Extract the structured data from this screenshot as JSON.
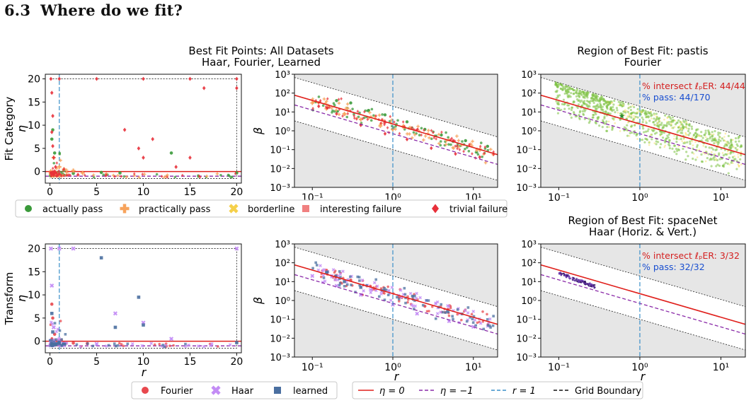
{
  "section": {
    "number": "6.3",
    "title": "Where do we fit?"
  },
  "titles": {
    "middle_top": [
      "Best Fit Points: All Datasets",
      "Haar, Fourier, Learned"
    ],
    "right_top": [
      "Region of Best Fit: pastis",
      "Fourier"
    ],
    "right_bottom": [
      "Region of Best Fit: spaceNet",
      "Haar (Horiz. & Vert.)"
    ]
  },
  "row_labels": {
    "top": "Fit Category",
    "bottom": "Transform"
  },
  "axes": {
    "left_xlabel": "r",
    "left_ylabel": "η",
    "loglog_xlabel": "r",
    "loglog_ylabel": "β",
    "left_xticks": [
      "0",
      "5",
      "10",
      "15",
      "20"
    ],
    "left_yticks": [
      "0",
      "5",
      "10",
      "15",
      "20"
    ],
    "log_xticks": [
      "10⁻¹",
      "10⁰",
      "10¹"
    ],
    "log_yticks": [
      "10⁻³",
      "10⁻²",
      "10⁻¹",
      "10⁰",
      "10¹",
      "10²",
      "10³"
    ]
  },
  "annotations": {
    "pastis": {
      "intersect": "% intersect ℓₚER: 44/44",
      "pass": "% pass: 44/170"
    },
    "spacenet": {
      "intersect": "% intersect ℓₚER: 3/32",
      "pass": "% pass: 32/32"
    }
  },
  "legends": {
    "fit_category": [
      {
        "label": "actually pass",
        "color": "#3a9a3a",
        "marker": "circle"
      },
      {
        "label": "practically pass",
        "color": "#f7a35c",
        "marker": "plus"
      },
      {
        "label": "borderline",
        "color": "#f5d04a",
        "marker": "x"
      },
      {
        "label": "interesting failure",
        "color": "#f08080",
        "marker": "square"
      },
      {
        "label": "trivial failure",
        "color": "#e8303a",
        "marker": "diamond"
      }
    ],
    "transform": [
      {
        "label": "Fourier",
        "color": "#e8484e",
        "marker": "circle"
      },
      {
        "label": "Haar",
        "color": "#c38cf5",
        "marker": "x"
      },
      {
        "label": "learned",
        "color": "#4a6fa0",
        "marker": "square"
      }
    ],
    "lines": [
      {
        "label": "η = 0",
        "color": "#e0201c",
        "style": "solid"
      },
      {
        "label": "η = −1",
        "color": "#8a2aa8",
        "style": "dashed"
      },
      {
        "label": "r = 1",
        "color": "#3a8fc8",
        "style": "dashed"
      },
      {
        "label": "Grid Boundary",
        "color": "#111111",
        "style": "dashed"
      }
    ]
  },
  "chart_data": [
    {
      "type": "scatter",
      "id": "fit-category-eta-vs-r",
      "xlabel": "r",
      "ylabel": "η",
      "xlim": [
        -0.5,
        20.5
      ],
      "ylim": [
        -2.5,
        21
      ],
      "series": [
        {
          "name": "actually pass",
          "points": [
            [
              0.3,
              9
            ],
            [
              0.2,
              7
            ],
            [
              0.5,
              4
            ],
            [
              1.5,
              0.2
            ],
            [
              2.5,
              -0.4
            ],
            [
              5.5,
              -0.2
            ],
            [
              7.5,
              -0.3
            ],
            [
              13,
              4
            ],
            [
              20,
              -0.3
            ]
          ]
        },
        {
          "name": "practically pass",
          "points": [
            [
              0.4,
              3
            ],
            [
              1.0,
              1
            ],
            [
              1.5,
              0.5
            ],
            [
              2.5,
              0.2
            ],
            [
              3.5,
              -0.3
            ]
          ]
        },
        {
          "name": "trivial failure",
          "points": [
            [
              0.1,
              20
            ],
            [
              1,
              20
            ],
            [
              5,
              20
            ],
            [
              10,
              20
            ],
            [
              15,
              20
            ],
            [
              20,
              20
            ],
            [
              0.2,
              17
            ],
            [
              0.3,
              12
            ],
            [
              0.2,
              8.5
            ],
            [
              0.3,
              5.5
            ],
            [
              0.4,
              3
            ],
            [
              0.6,
              1
            ],
            [
              1,
              -0.5
            ],
            [
              3,
              -0.7
            ],
            [
              6,
              -0.8
            ],
            [
              8,
              9
            ],
            [
              9.5,
              5
            ],
            [
              10,
              3
            ],
            [
              11,
              7
            ],
            [
              13.5,
              1
            ],
            [
              15,
              3
            ],
            [
              16.5,
              18
            ],
            [
              20,
              18
            ]
          ]
        }
      ]
    },
    {
      "type": "scatter",
      "id": "fit-category-beta-vs-r",
      "xscale": "log",
      "yscale": "log",
      "xlabel": "r",
      "ylabel": "β",
      "xlim": [
        0.06,
        20
      ],
      "ylim": [
        0.001,
        1000
      ],
      "series": [
        {
          "name": "actually pass",
          "points": [
            [
              0.2,
              40
            ],
            [
              0.3,
              30
            ],
            [
              0.5,
              12
            ],
            [
              0.8,
              7
            ],
            [
              1.5,
              3
            ],
            [
              2.5,
              1.2
            ],
            [
              4,
              0.6
            ],
            [
              8,
              0.3
            ],
            [
              15,
              0.15
            ]
          ]
        },
        {
          "name": "practically pass",
          "points": [
            [
              0.1,
              30
            ],
            [
              0.15,
              15
            ],
            [
              0.25,
              8
            ],
            [
              0.4,
              4
            ],
            [
              0.7,
              1.8
            ],
            [
              1,
              1.2
            ]
          ]
        },
        {
          "name": "trivial failure",
          "points": [
            [
              0.12,
              20
            ],
            [
              0.2,
              8
            ],
            [
              0.4,
              2
            ],
            [
              0.8,
              0.7
            ],
            [
              1.5,
              0.35
            ],
            [
              3,
              0.12
            ],
            [
              6,
              0.06
            ],
            [
              12,
              0.04
            ]
          ]
        }
      ]
    },
    {
      "type": "scatter",
      "id": "pastis-fourier-region",
      "xscale": "log",
      "yscale": "log",
      "xlabel": "",
      "ylabel": "",
      "xlim": [
        0.06,
        20
      ],
      "ylim": [
        0.001,
        1000
      ],
      "series": [
        {
          "name": "actually pass",
          "points": [
            [
              0.1,
              150
            ],
            [
              0.2,
              60
            ],
            [
              0.4,
              20
            ],
            [
              0.6,
              6
            ],
            [
              1,
              3
            ],
            [
              2,
              1
            ],
            [
              5,
              0.3
            ],
            [
              10,
              0.12
            ],
            [
              18,
              0.06
            ]
          ]
        },
        {
          "name": "borderline",
          "points": [
            [
              0.5,
              60
            ],
            [
              1,
              25
            ],
            [
              2,
              8
            ],
            [
              4,
              3
            ],
            [
              8,
              1
            ],
            [
              15,
              0.4
            ]
          ]
        }
      ]
    },
    {
      "type": "scatter",
      "id": "transform-eta-vs-r",
      "xlabel": "r",
      "ylabel": "η",
      "xlim": [
        -0.5,
        20.5
      ],
      "ylim": [
        -2.5,
        21
      ],
      "series": [
        {
          "name": "Fourier",
          "points": [
            [
              0.2,
              8
            ],
            [
              0.3,
              5
            ],
            [
              0.5,
              1.5
            ],
            [
              1,
              0.2
            ],
            [
              2.5,
              -0.4
            ],
            [
              4,
              -0.5
            ]
          ]
        },
        {
          "name": "Haar",
          "points": [
            [
              0.1,
              20
            ],
            [
              1,
              20
            ],
            [
              2.5,
              20
            ],
            [
              20,
              20
            ],
            [
              0.2,
              12
            ],
            [
              0.4,
              3
            ],
            [
              1.5,
              -0.5
            ],
            [
              5,
              -0.6
            ],
            [
              7,
              6
            ],
            [
              10,
              4
            ],
            [
              13,
              0.5
            ]
          ]
        },
        {
          "name": "learned",
          "points": [
            [
              0.2,
              6
            ],
            [
              0.3,
              2
            ],
            [
              1,
              -0.3
            ],
            [
              5.5,
              18
            ],
            [
              7,
              3
            ],
            [
              9.5,
              9.5
            ],
            [
              10,
              3.5
            ],
            [
              20,
              -0.3
            ]
          ]
        }
      ]
    },
    {
      "type": "scatter",
      "id": "transform-beta-vs-r",
      "xscale": "log",
      "yscale": "log",
      "xlabel": "r",
      "ylabel": "β",
      "xlim": [
        0.06,
        20
      ],
      "ylim": [
        0.001,
        1000
      ],
      "series": [
        {
          "name": "Fourier",
          "points": [
            [
              0.15,
              40
            ],
            [
              0.3,
              12
            ],
            [
              0.6,
              4
            ],
            [
              1.2,
              1.5
            ],
            [
              2.5,
              0.5
            ]
          ]
        },
        {
          "name": "Haar",
          "points": [
            [
              0.1,
              20
            ],
            [
              0.2,
              6
            ],
            [
              0.4,
              2
            ],
            [
              1,
              0.6
            ],
            [
              2,
              0.2
            ],
            [
              5,
              0.08
            ],
            [
              10,
              0.04
            ]
          ]
        },
        {
          "name": "learned",
          "points": [
            [
              0.15,
              30
            ],
            [
              0.25,
              10
            ],
            [
              0.4,
              5
            ]
          ]
        }
      ]
    },
    {
      "type": "scatter",
      "id": "spacenet-haar-region",
      "xscale": "log",
      "yscale": "log",
      "xlabel": "r",
      "ylabel": "",
      "xlim": [
        0.06,
        20
      ],
      "ylim": [
        0.001,
        1000
      ],
      "series": [
        {
          "name": "Haar",
          "points": [
            [
              0.1,
              28
            ],
            [
              0.13,
              18
            ],
            [
              0.17,
              12
            ],
            [
              0.22,
              8
            ],
            [
              0.28,
              5
            ]
          ]
        }
      ]
    }
  ]
}
